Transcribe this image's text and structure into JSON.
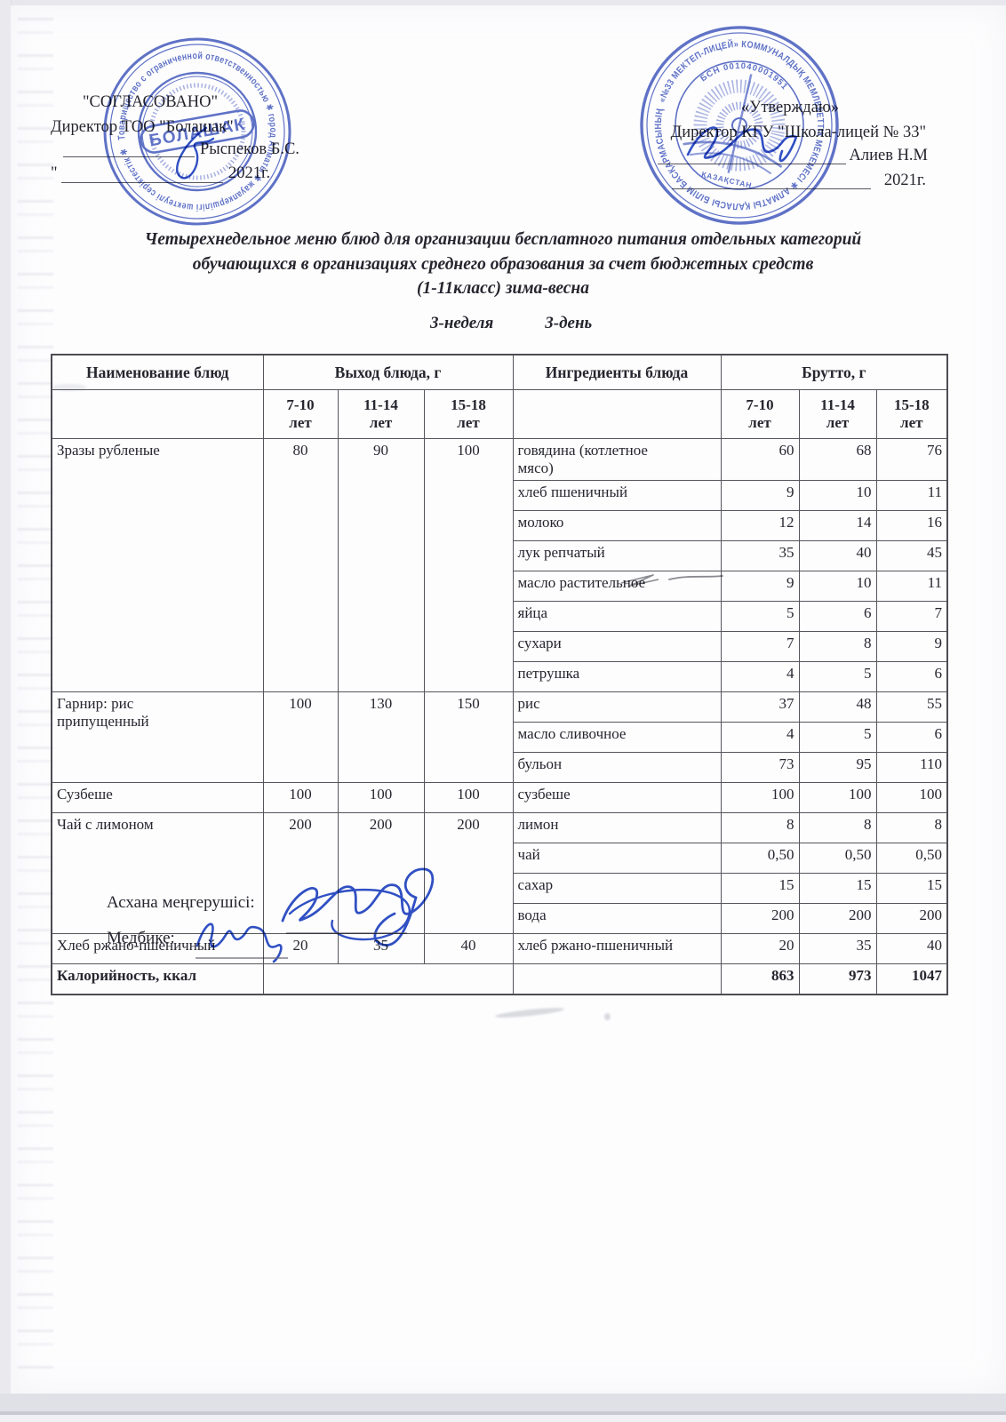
{
  "document": {
    "approval_left": {
      "status": "\"СОГЛАСОВАНО\"",
      "role": "Директор ТОО \"Болашак\"",
      "name": "Рыспеков Б.С.",
      "date_prefix": "\"",
      "year": "2021г."
    },
    "approval_right": {
      "status": "«Утверждаю»",
      "role": "Директор КГУ \"Школа-лицей № 33\"",
      "name": "Алиев Н.М",
      "year": "2021г."
    },
    "stamps": {
      "left": {
        "center": "БОЛАШАК",
        "ring": "Товарищество с ограниченной ответственностью ✱ город Алматы ✱ жауапкершілігі шектеулі серіктестік ✱"
      },
      "right": {
        "ring": "«№33 МЕКТЕП-ЛИЦЕЙ» КОММУНАЛДЫҚ МЕМЛЕКЕТТІК МЕКЕМЕСІ ✱ АЛМАТЫ ҚАЛАСЫ БІЛІМ БАСҚАРМАСЫНЫҢ",
        "bin": "БСН 001040001951",
        "country": "ҚАЗАҚСТАН"
      }
    },
    "title": {
      "line1": "Четырехнедельное меню блюд для организации бесплатного питания отдельных категорий",
      "line2": "обучающихся в организациях среднего образования за счет бюджетных средств",
      "line3": "(1-11класс) зима-весна"
    },
    "schedule": {
      "week": "3-неделя",
      "day": "3-день"
    },
    "table": {
      "header": {
        "dish": "Наименование блюд",
        "output": "Выход блюда, г",
        "ingredients": "Ингредиенты блюда",
        "brutto": "Брутто, г",
        "ages": [
          "7-10",
          "11-14",
          "15-18"
        ],
        "age_unit": "лет"
      },
      "dishes": [
        {
          "name": "Зразы рубленые",
          "out": [
            "80",
            "90",
            "100"
          ],
          "ingredients": [
            {
              "name": "говядина (котлетное\nмясо)",
              "v": [
                "60",
                "68",
                "76"
              ]
            },
            {
              "name": "хлеб пшеничный",
              "v": [
                "9",
                "10",
                "11"
              ]
            },
            {
              "name": "молоко",
              "v": [
                "12",
                "14",
                "16"
              ]
            },
            {
              "name": "лук репчатый",
              "v": [
                "35",
                "40",
                "45"
              ]
            },
            {
              "name": "масло растительное",
              "v": [
                "9",
                "10",
                "11"
              ]
            },
            {
              "name": "яйца",
              "v": [
                "5",
                "6",
                "7"
              ]
            },
            {
              "name": "сухари",
              "v": [
                "7",
                "8",
                "9"
              ]
            },
            {
              "name": "петрушка",
              "v": [
                "4",
                "5",
                "6"
              ]
            }
          ]
        },
        {
          "name": "Гарнир: рис\nприпущенный",
          "out": [
            "100",
            "130",
            "150"
          ],
          "ingredients": [
            {
              "name": "рис",
              "v": [
                "37",
                "48",
                "55"
              ]
            },
            {
              "name": "масло сливочное",
              "v": [
                "4",
                "5",
                "6"
              ]
            },
            {
              "name": "бульон",
              "v": [
                "73",
                "95",
                "110"
              ]
            }
          ]
        },
        {
          "name": "Сузбеше",
          "out": [
            "100",
            "100",
            "100"
          ],
          "ingredients": [
            {
              "name": "сузбеше",
              "v": [
                "100",
                "100",
                "100"
              ]
            }
          ]
        },
        {
          "name": "Чай с лимоном",
          "out": [
            "200",
            "200",
            "200"
          ],
          "ingredients": [
            {
              "name": "лимон",
              "v": [
                "8",
                "8",
                "8"
              ]
            },
            {
              "name": "чай",
              "v": [
                "0,50",
                "0,50",
                "0,50"
              ]
            },
            {
              "name": "сахар",
              "v": [
                "15",
                "15",
                "15"
              ]
            },
            {
              "name": "вода",
              "v": [
                "200",
                "200",
                "200"
              ]
            }
          ]
        },
        {
          "name": "Хлеб ржано-пшеничный",
          "out": [
            "20",
            "35",
            "40"
          ],
          "ingredients": [
            {
              "name": "хлеб ржано-пшеничный",
              "v": [
                "20",
                "35",
                "40"
              ]
            }
          ]
        }
      ],
      "totals": {
        "label": "Калорийность, ккал",
        "values": [
          "863",
          "973",
          "1047"
        ]
      }
    },
    "footer": {
      "manager_label": "Асхана меңгерушісі:",
      "nurse_label": "Медбике:"
    },
    "colors": {
      "stamp_blue": "#4a5fc0",
      "ink_blue": "#3050c4",
      "text_ink": "#25252e",
      "border_gray": "#55555c"
    }
  }
}
